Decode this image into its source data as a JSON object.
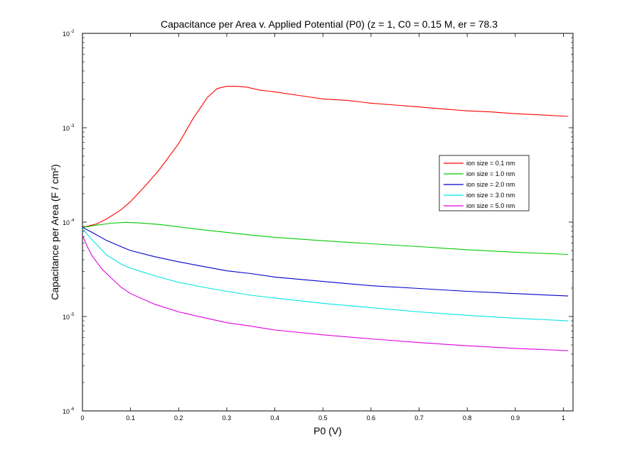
{
  "chart_data": {
    "type": "line",
    "title": "Capacitance per Area v. Applied Potential (P0) (z = 1, C0 = 0.15 M, er = 78.3",
    "xlabel": "P0 (V)",
    "ylabel": "Capacitance per Area (F / cm²)",
    "xlim": [
      0,
      1.02
    ],
    "ylim": [
      1e-06,
      0.01
    ],
    "yscale": "log",
    "x_ticks": [
      "0",
      "0.1",
      "0.2",
      "0.3",
      "0.4",
      "0.5",
      "0.6",
      "0.7",
      "0.8",
      "0.9",
      "1"
    ],
    "y_ticks": [
      {
        "base": "10",
        "exp": "-6"
      },
      {
        "base": "10",
        "exp": "-5"
      },
      {
        "base": "10",
        "exp": "-4"
      },
      {
        "base": "10",
        "exp": "-3"
      },
      {
        "base": "10",
        "exp": "-2"
      }
    ],
    "grid": false,
    "legend_position": "right",
    "series": [
      {
        "name": "ion size = 0.1 nm",
        "color": "#ff0000",
        "points": [
          [
            0.0,
            8.8e-05
          ],
          [
            0.03,
            9.6e-05
          ],
          [
            0.05,
            0.000108
          ],
          [
            0.08,
            0.000135
          ],
          [
            0.1,
            0.000165
          ],
          [
            0.13,
            0.00024
          ],
          [
            0.16,
            0.00036
          ],
          [
            0.2,
            0.00068
          ],
          [
            0.23,
            0.00125
          ],
          [
            0.26,
            0.0021
          ],
          [
            0.28,
            0.0026
          ],
          [
            0.3,
            0.00275
          ],
          [
            0.32,
            0.00275
          ],
          [
            0.34,
            0.0027
          ],
          [
            0.37,
            0.0025
          ],
          [
            0.4,
            0.0024
          ],
          [
            0.45,
            0.0022
          ],
          [
            0.5,
            0.00202
          ],
          [
            0.55,
            0.00195
          ],
          [
            0.6,
            0.00182
          ],
          [
            0.65,
            0.00174
          ],
          [
            0.7,
            0.00166
          ],
          [
            0.75,
            0.00158
          ],
          [
            0.8,
            0.00151
          ],
          [
            0.85,
            0.00147
          ],
          [
            0.9,
            0.00141
          ],
          [
            0.95,
            0.00137
          ],
          [
            1.01,
            0.00132
          ]
        ]
      },
      {
        "name": "ion size = 1.0 nm",
        "color": "#00cc00",
        "points": [
          [
            0.0,
            8.8e-05
          ],
          [
            0.03,
            9.3e-05
          ],
          [
            0.06,
            9.75e-05
          ],
          [
            0.09,
            9.95e-05
          ],
          [
            0.12,
            9.8e-05
          ],
          [
            0.16,
            9.45e-05
          ],
          [
            0.2,
            8.9e-05
          ],
          [
            0.25,
            8.3e-05
          ],
          [
            0.3,
            7.8e-05
          ],
          [
            0.35,
            7.3e-05
          ],
          [
            0.4,
            6.9e-05
          ],
          [
            0.5,
            6.35e-05
          ],
          [
            0.6,
            5.9e-05
          ],
          [
            0.7,
            5.5e-05
          ],
          [
            0.8,
            5.1e-05
          ],
          [
            0.9,
            4.8e-05
          ],
          [
            1.01,
            4.55e-05
          ]
        ]
      },
      {
        "name": "ion size = 2.0 nm",
        "color": "#0000cc",
        "points": [
          [
            0.0,
            8.8e-05
          ],
          [
            0.02,
            7.8e-05
          ],
          [
            0.05,
            6.4e-05
          ],
          [
            0.08,
            5.5e-05
          ],
          [
            0.1,
            5e-05
          ],
          [
            0.15,
            4.3e-05
          ],
          [
            0.2,
            3.8e-05
          ],
          [
            0.25,
            3.4e-05
          ],
          [
            0.3,
            3.05e-05
          ],
          [
            0.35,
            2.85e-05
          ],
          [
            0.4,
            2.62e-05
          ],
          [
            0.5,
            2.35e-05
          ],
          [
            0.6,
            2.12e-05
          ],
          [
            0.7,
            1.98e-05
          ],
          [
            0.8,
            1.85e-05
          ],
          [
            0.9,
            1.75e-05
          ],
          [
            1.01,
            1.65e-05
          ]
        ]
      },
      {
        "name": "ion size = 3.0 nm",
        "color": "#00e5e5",
        "points": [
          [
            0.0,
            8.5e-05
          ],
          [
            0.02,
            6.5e-05
          ],
          [
            0.05,
            4.5e-05
          ],
          [
            0.08,
            3.6e-05
          ],
          [
            0.1,
            3.25e-05
          ],
          [
            0.15,
            2.7e-05
          ],
          [
            0.2,
            2.3e-05
          ],
          [
            0.25,
            2.05e-05
          ],
          [
            0.3,
            1.85e-05
          ],
          [
            0.35,
            1.68e-05
          ],
          [
            0.4,
            1.57e-05
          ],
          [
            0.5,
            1.38e-05
          ],
          [
            0.6,
            1.24e-05
          ],
          [
            0.7,
            1.12e-05
          ],
          [
            0.8,
            1.03e-05
          ],
          [
            0.9,
            9.6e-06
          ],
          [
            1.01,
            9e-06
          ]
        ]
      },
      {
        "name": "ion size = 5.0 nm",
        "color": "#e000e0",
        "points": [
          [
            0.0,
            7.2e-05
          ],
          [
            0.01,
            5.5e-05
          ],
          [
            0.02,
            4.4e-05
          ],
          [
            0.04,
            3.2e-05
          ],
          [
            0.06,
            2.55e-05
          ],
          [
            0.08,
            2.05e-05
          ],
          [
            0.1,
            1.75e-05
          ],
          [
            0.15,
            1.35e-05
          ],
          [
            0.2,
            1.12e-05
          ],
          [
            0.25,
            9.8e-06
          ],
          [
            0.3,
            8.6e-06
          ],
          [
            0.35,
            7.9e-06
          ],
          [
            0.4,
            7.2e-06
          ],
          [
            0.5,
            6.4e-06
          ],
          [
            0.6,
            5.8e-06
          ],
          [
            0.7,
            5.3e-06
          ],
          [
            0.8,
            4.9e-06
          ],
          [
            0.9,
            4.6e-06
          ],
          [
            1.01,
            4.35e-06
          ]
        ]
      }
    ]
  }
}
